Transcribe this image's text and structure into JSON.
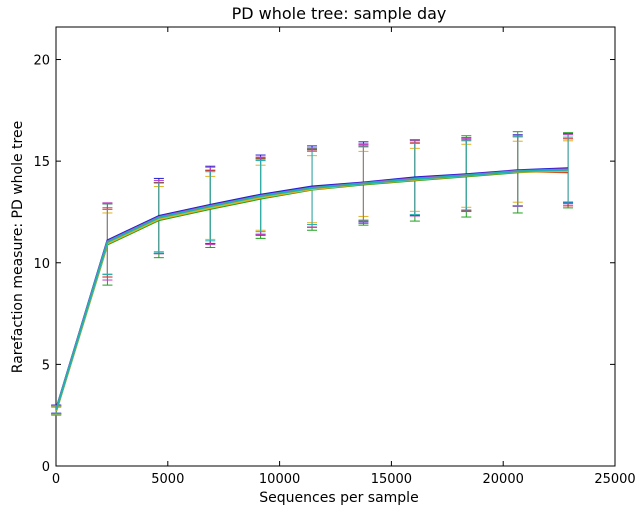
{
  "chart_data": {
    "type": "line",
    "title": "PD whole tree: sample day",
    "xlabel": "Sequences per sample",
    "ylabel": "Rarefaction measure: PD whole tree",
    "xlim": [
      0,
      25000
    ],
    "ylim": [
      0,
      21.6
    ],
    "xticks": [
      0,
      5000,
      10000,
      15000,
      20000,
      25000
    ],
    "yticks": [
      0,
      5,
      10,
      15,
      20
    ],
    "grid": false,
    "legend": "none",
    "x": [
      10,
      2300,
      4600,
      6900,
      9150,
      11450,
      13750,
      16050,
      18350,
      20650,
      22900
    ],
    "series": [
      {
        "color": "#1f1fd0",
        "values": [
          2.8,
          11.1,
          12.3,
          12.85,
          13.35,
          13.75,
          13.95,
          14.2,
          14.35,
          14.55,
          14.65
        ],
        "err": [
          0.2,
          1.8,
          1.85,
          1.9,
          1.95,
          2.0,
          2.0,
          1.85,
          1.8,
          1.75,
          1.7
        ]
      },
      {
        "color": "#1fa01f",
        "values": [
          2.7,
          10.9,
          12.1,
          12.65,
          13.15,
          13.6,
          13.85,
          14.05,
          14.25,
          14.45,
          14.55
        ],
        "err": [
          0.2,
          2.0,
          1.85,
          1.9,
          1.95,
          2.0,
          2.0,
          2.0,
          2.0,
          2.0,
          1.85
        ]
      },
      {
        "color": "#d01f1f",
        "values": [
          2.75,
          11.0,
          12.2,
          12.75,
          13.25,
          13.65,
          13.9,
          14.1,
          14.3,
          14.5,
          14.45
        ],
        "err": [
          0.2,
          1.7,
          1.75,
          1.8,
          1.9,
          1.9,
          1.85,
          1.8,
          1.75,
          1.7,
          1.65
        ]
      },
      {
        "color": "#c040c0",
        "values": [
          2.78,
          11.05,
          12.25,
          12.8,
          13.3,
          13.7,
          13.92,
          14.15,
          14.32,
          14.52,
          14.6
        ],
        "err": [
          0.2,
          1.9,
          1.8,
          1.9,
          1.9,
          1.95,
          1.9,
          1.85,
          1.8,
          1.75,
          1.7
        ]
      },
      {
        "color": "#e0b020",
        "values": [
          2.72,
          10.95,
          12.15,
          12.7,
          13.2,
          13.62,
          13.88,
          14.08,
          14.28,
          14.48,
          14.5
        ],
        "err": [
          0.2,
          1.5,
          1.6,
          1.55,
          1.6,
          1.65,
          1.6,
          1.55,
          1.55,
          1.5,
          1.5
        ]
      },
      {
        "color": "#20b0b0",
        "values": [
          2.76,
          11.02,
          12.22,
          12.78,
          13.28,
          13.68,
          13.9,
          14.12,
          14.3,
          14.5,
          14.58
        ],
        "err": [
          0.2,
          1.6,
          1.7,
          1.7,
          1.75,
          1.8,
          1.8,
          1.75,
          1.7,
          1.7,
          1.6
        ]
      }
    ]
  }
}
